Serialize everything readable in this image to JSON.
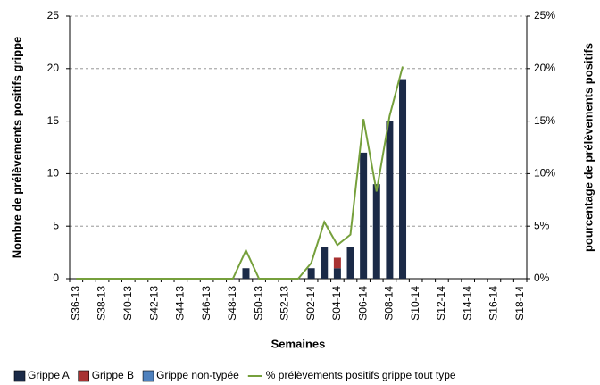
{
  "chart_data": {
    "type": "bar",
    "x_label": "Semaines",
    "y_label": "Nombre de prélèvements positifs grippe",
    "y2_label": "pourcentage de prélèvements positifs",
    "categories": [
      "S36-13",
      null,
      "S38-13",
      null,
      "S40-13",
      null,
      "S42-13",
      null,
      "S44-13",
      null,
      "S46-13",
      null,
      "S48-13",
      null,
      "S50-13",
      null,
      "S52-13",
      null,
      "S02-14",
      null,
      "S04-14",
      null,
      "S06-14",
      null,
      "S08-14",
      null,
      "S10-14",
      null,
      "S12-14",
      null,
      "S14-14",
      null,
      "S16-14",
      null,
      "S18-14"
    ],
    "stacked": true,
    "series": [
      {
        "name": "Grippe A",
        "color": "#1b2a47",
        "values": [
          0,
          0,
          0,
          0,
          0,
          0,
          0,
          0,
          0,
          0,
          0,
          0,
          0,
          1,
          0,
          0,
          0,
          0,
          1,
          3,
          1,
          3,
          12,
          9,
          15,
          19,
          null,
          null,
          null,
          null,
          null,
          null,
          null,
          null,
          null
        ]
      },
      {
        "name": "Grippe B",
        "color": "#a83232",
        "values": [
          0,
          0,
          0,
          0,
          0,
          0,
          0,
          0,
          0,
          0,
          0,
          0,
          0,
          0,
          0,
          0,
          0,
          0,
          0,
          0,
          1,
          0,
          0,
          0,
          0,
          0,
          null,
          null,
          null,
          null,
          null,
          null,
          null,
          null,
          null
        ]
      },
      {
        "name": "Grippe non-typée",
        "color": "#4f81bd",
        "values": [
          0,
          0,
          0,
          0,
          0,
          0,
          0,
          0,
          0,
          0,
          0,
          0,
          0,
          0,
          0,
          0,
          0,
          0,
          0,
          0,
          0,
          0,
          0,
          0,
          0,
          0,
          null,
          null,
          null,
          null,
          null,
          null,
          null,
          null,
          null
        ]
      },
      {
        "name": "% prélèvements positifs grippe tout type",
        "color": "#76a03c",
        "type": "line",
        "axis": "y2",
        "values": [
          0,
          0,
          0,
          0,
          0,
          0,
          0,
          0,
          0,
          0,
          0,
          0,
          0,
          2.7,
          0,
          0,
          0,
          0,
          1.5,
          5.4,
          3.2,
          4.2,
          15.2,
          8.3,
          15.5,
          20.2,
          null,
          null,
          null,
          null,
          null,
          null,
          null,
          null,
          null
        ]
      }
    ],
    "ylim": [
      0,
      25
    ],
    "yticks": [
      0,
      5,
      10,
      15,
      20,
      25
    ],
    "y2lim": [
      0,
      25
    ],
    "y2ticks": [
      {
        "value": 0,
        "label": "0%"
      },
      {
        "value": 5,
        "label": "5%"
      },
      {
        "value": 10,
        "label": "10%"
      },
      {
        "value": 15,
        "label": "15%"
      },
      {
        "value": 20,
        "label": "20%"
      },
      {
        "value": 25,
        "label": "25%"
      }
    ],
    "grid": true
  }
}
